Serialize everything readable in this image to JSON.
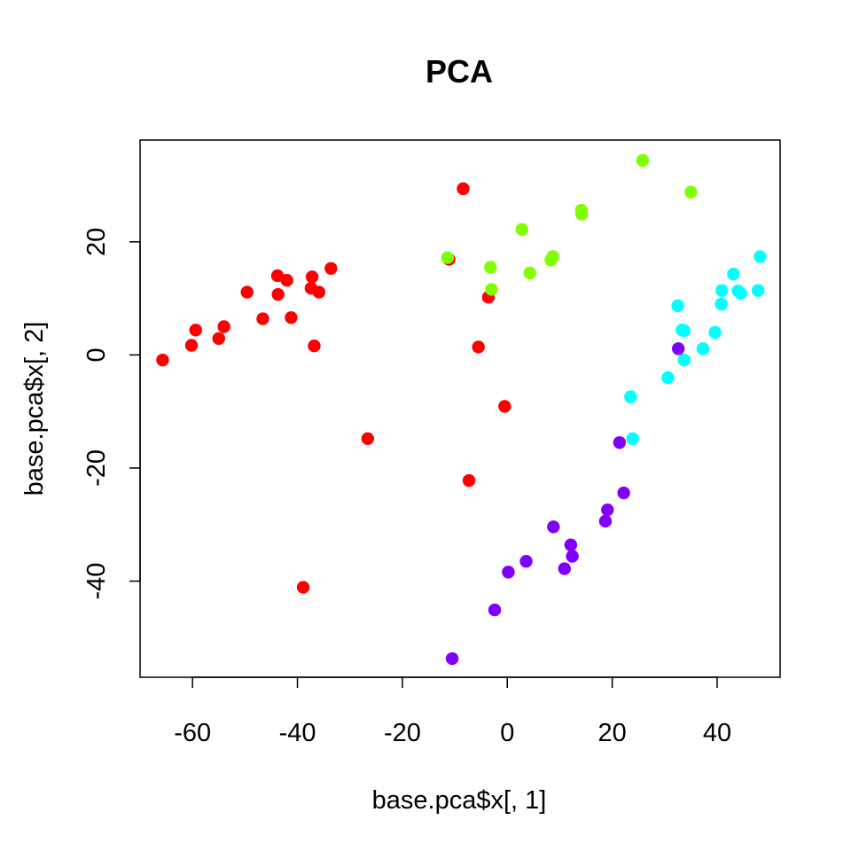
{
  "chart_data": {
    "type": "scatter",
    "title": "PCA",
    "xlabel": "base.pca$x[, 1]",
    "ylabel": "base.pca$x[, 2]",
    "xlim": [
      -70.0,
      52.0
    ],
    "ylim": [
      -57.0,
      38.0
    ],
    "xticks": [
      -60,
      -40,
      -20,
      0,
      20,
      40
    ],
    "yticks": [
      -40,
      -20,
      0,
      20
    ],
    "grid": false,
    "legend": "none",
    "series": [
      {
        "color": "#FF0000",
        "points": [
          [
            -65.7,
            -0.9
          ],
          [
            -60.2,
            1.7
          ],
          [
            -59.4,
            4.4
          ],
          [
            -55.0,
            2.9
          ],
          [
            -54.0,
            5.0
          ],
          [
            -49.6,
            11.1
          ],
          [
            -46.6,
            6.4
          ],
          [
            -43.8,
            14.0
          ],
          [
            -43.7,
            10.7
          ],
          [
            -42.0,
            13.2
          ],
          [
            -41.2,
            6.6
          ],
          [
            -37.4,
            11.8
          ],
          [
            -37.2,
            13.8
          ],
          [
            -36.8,
            1.6
          ],
          [
            -35.9,
            11.1
          ],
          [
            -33.6,
            15.3
          ],
          [
            -26.6,
            -14.8
          ],
          [
            -38.9,
            -41.1
          ],
          [
            -11.1,
            16.9
          ],
          [
            -8.4,
            29.4
          ],
          [
            -7.3,
            -22.2
          ],
          [
            -5.5,
            1.4
          ],
          [
            -3.6,
            10.2
          ],
          [
            -0.5,
            -9.1
          ]
        ]
      },
      {
        "color": "#80FF00",
        "points": [
          [
            -11.4,
            17.2
          ],
          [
            -3.2,
            15.5
          ],
          [
            -3.0,
            11.6
          ],
          [
            2.8,
            22.2
          ],
          [
            4.3,
            14.5
          ],
          [
            8.3,
            16.8
          ],
          [
            8.7,
            17.4
          ],
          [
            14.1,
            25.6
          ],
          [
            14.2,
            24.9
          ],
          [
            25.8,
            34.4
          ],
          [
            35.0,
            28.8
          ]
        ]
      },
      {
        "color": "#00FFFF",
        "points": [
          [
            23.5,
            -7.4
          ],
          [
            23.9,
            -14.8
          ],
          [
            30.6,
            -4.0
          ],
          [
            32.5,
            8.7
          ],
          [
            33.3,
            4.4
          ],
          [
            33.7,
            4.3
          ],
          [
            33.7,
            -0.9
          ],
          [
            37.3,
            1.1
          ],
          [
            39.6,
            4.0
          ],
          [
            40.8,
            9.0
          ],
          [
            40.9,
            11.4
          ],
          [
            43.1,
            14.3
          ],
          [
            44.0,
            11.3
          ],
          [
            44.5,
            10.9
          ],
          [
            47.8,
            11.4
          ],
          [
            48.2,
            17.4
          ]
        ]
      },
      {
        "color": "#8000FF",
        "points": [
          [
            32.6,
            1.1
          ],
          [
            21.4,
            -15.5
          ],
          [
            22.2,
            -24.4
          ],
          [
            19.1,
            -27.4
          ],
          [
            18.7,
            -29.4
          ],
          [
            8.8,
            -30.4
          ],
          [
            12.1,
            -33.6
          ],
          [
            12.4,
            -35.6
          ],
          [
            10.9,
            -37.8
          ],
          [
            3.6,
            -36.5
          ],
          [
            0.2,
            -38.4
          ],
          [
            -2.4,
            -45.1
          ],
          [
            -10.5,
            -53.7
          ]
        ]
      }
    ]
  }
}
